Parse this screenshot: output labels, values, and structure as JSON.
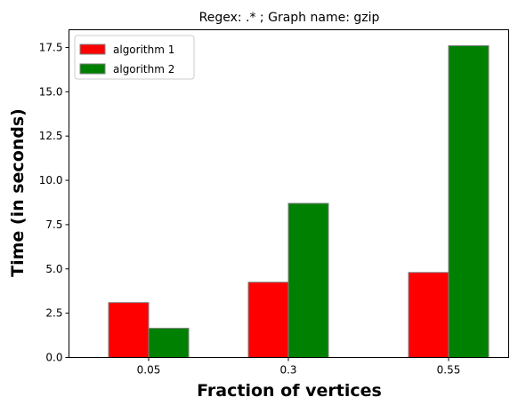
{
  "chart_data": {
    "type": "bar",
    "title": "Regex: .* ; Graph name: gzip",
    "xlabel": "Fraction of vertices",
    "ylabel": "Time (in seconds)",
    "categories": [
      "0.05",
      "0.3",
      "0.55"
    ],
    "series": [
      {
        "name": "algorithm 1",
        "color": "#ff0000",
        "values": [
          3.1,
          4.25,
          4.8
        ]
      },
      {
        "name": "algorithm 2",
        "color": "#008000",
        "values": [
          1.65,
          8.7,
          17.6
        ]
      }
    ],
    "ylim": [
      0,
      18.5
    ],
    "yticks": [
      0,
      2.5,
      5,
      7.5,
      10,
      12.5,
      15,
      17.5
    ],
    "ytick_labels": [
      "0.0",
      "2.5",
      "5.0",
      "7.5",
      "10.0",
      "12.5",
      "15.0",
      "17.5"
    ],
    "legend_position": "top-left",
    "grid": false,
    "bar_edge_color": "#808080"
  }
}
